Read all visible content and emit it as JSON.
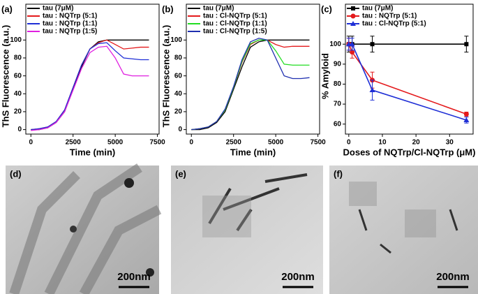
{
  "chart_data": [
    {
      "type": "line",
      "panel_label": "(a)",
      "xlabel": "Time (min)",
      "ylabel": "ThS Fluorescence (a.u.)",
      "x": [
        0,
        500,
        1000,
        1500,
        2000,
        2500,
        3000,
        3500,
        4000,
        4500,
        5000,
        5500,
        6000,
        6500,
        7000
      ],
      "xlim": [
        -300,
        7600
      ],
      "xticks": [
        0,
        2500,
        5000,
        7500
      ],
      "ylim": [
        -5,
        140
      ],
      "yticks": [
        0,
        20,
        40,
        60,
        80,
        100
      ],
      "legend": "upper left",
      "series": [
        {
          "name": "tau (7μM)",
          "color": "#000000",
          "values": [
            0,
            0,
            2,
            8,
            20,
            45,
            70,
            90,
            98,
            100,
            100,
            100,
            100,
            100,
            100
          ]
        },
        {
          "name": "tau : NQTrp (5:1)",
          "color": "#e41a1c",
          "values": [
            0,
            1,
            3,
            9,
            22,
            47,
            72,
            90,
            97,
            100,
            95,
            90,
            91,
            92,
            92
          ]
        },
        {
          "name": "tau : NQTrp (1:1)",
          "color": "#1f2fd6",
          "values": [
            0,
            1,
            3,
            9,
            22,
            47,
            72,
            90,
            96,
            97,
            88,
            80,
            79,
            78,
            78
          ]
        },
        {
          "name": "tau : NQTrp (1:5)",
          "color": "#e020e0",
          "values": [
            -1,
            0,
            2,
            8,
            20,
            44,
            68,
            86,
            92,
            93,
            80,
            62,
            60,
            60,
            60
          ]
        }
      ]
    },
    {
      "type": "line",
      "panel_label": "(b)",
      "xlabel": "Time (min)",
      "ylabel": "ThS Fluorescence (a.u.)",
      "x": [
        0,
        500,
        1000,
        1500,
        2000,
        2500,
        3000,
        3500,
        4000,
        4500,
        5000,
        5500,
        6000,
        6500,
        7000
      ],
      "xlim": [
        -300,
        7600
      ],
      "xticks": [
        0,
        2500,
        5000,
        7500
      ],
      "ylim": [
        -5,
        140
      ],
      "yticks": [
        0,
        20,
        40,
        60,
        80,
        100
      ],
      "legend": "upper left",
      "series": [
        {
          "name": "tau (7μM)",
          "color": "#000000",
          "values": [
            0,
            0,
            2,
            8,
            20,
            45,
            70,
            92,
            98,
            100,
            100,
            100,
            100,
            100,
            100
          ]
        },
        {
          "name": "tau : Cl-NQTrp (5:1)",
          "color": "#e41a1c",
          "values": [
            0,
            1,
            3,
            9,
            22,
            47,
            75,
            95,
            100,
            100,
            95,
            92,
            93,
            93,
            93
          ]
        },
        {
          "name": "tau : Cl-NQTrp (1:1)",
          "color": "#22dd22",
          "values": [
            0,
            1,
            3,
            9,
            22,
            47,
            76,
            96,
            100,
            100,
            88,
            73,
            72,
            72,
            72
          ]
        },
        {
          "name": "tau : Cl-NQTrp (1:5)",
          "color": "#1f2fb0",
          "values": [
            0,
            1,
            3,
            9,
            23,
            48,
            78,
            98,
            102,
            100,
            80,
            60,
            57,
            57,
            58
          ]
        }
      ]
    },
    {
      "type": "errorline",
      "panel_label": "(c)",
      "xlabel": "Doses of NQTrp/Cl-NQTrp (μM)",
      "ylabel": "% Amyloid",
      "x": [
        0,
        1,
        7,
        35
      ],
      "xlim": [
        -1,
        37
      ],
      "xticks": [
        0,
        10,
        20,
        30
      ],
      "ylim": [
        55,
        120
      ],
      "yticks": [
        60,
        70,
        80,
        90,
        100
      ],
      "legend": "upper left",
      "series": [
        {
          "name": "tau (7μM)",
          "color": "#000000",
          "marker": "square",
          "values": [
            100,
            100,
            100,
            100
          ],
          "errors": [
            4,
            4,
            4,
            4
          ]
        },
        {
          "name": "tau : NQTrp (5:1)",
          "color": "#e41a1c",
          "marker": "circle",
          "values": [
            100,
            96,
            82,
            65
          ],
          "errors": [
            3,
            3,
            4,
            1
          ]
        },
        {
          "name": "tau : Cl-NQTrp (5:1)",
          "color": "#1f2fd6",
          "marker": "triangle",
          "values": [
            100,
            100,
            77,
            62
          ],
          "errors": [
            3,
            3,
            5,
            1.5
          ]
        }
      ]
    }
  ],
  "panels": [
    {
      "label": "(d)",
      "scale_bar": "200nm"
    },
    {
      "label": "(e)",
      "scale_bar": "200nm"
    },
    {
      "label": "(f)",
      "scale_bar": "200nm"
    }
  ]
}
